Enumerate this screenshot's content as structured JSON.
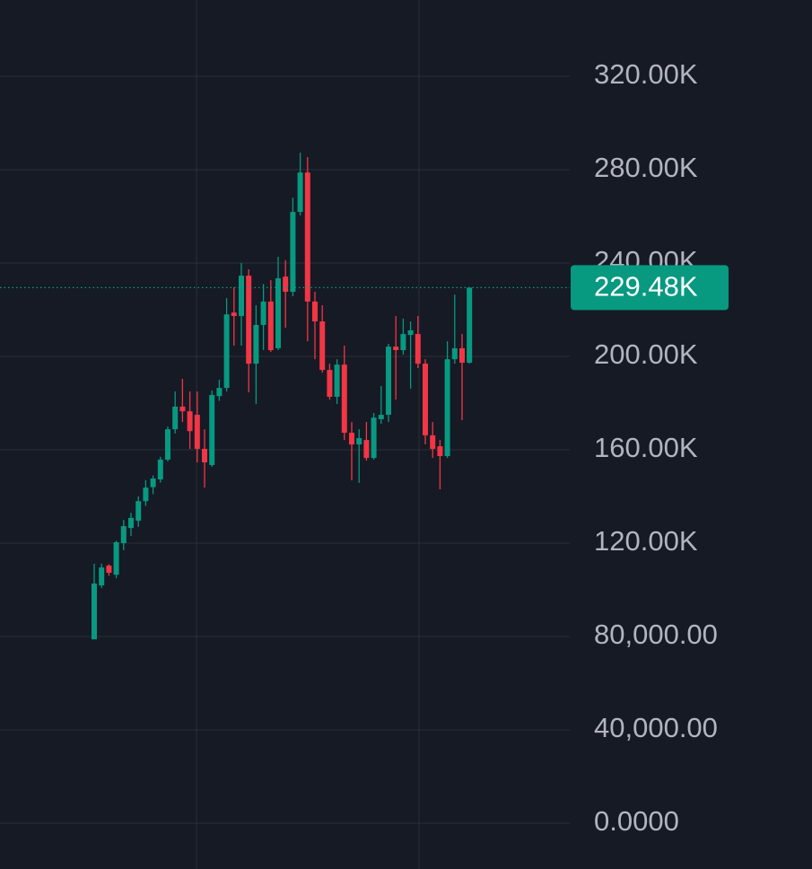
{
  "chart_data": {
    "type": "candlestick",
    "open": [
      78800,
      101900,
      110400,
      106500,
      120000,
      126500,
      129600,
      138000,
      144000,
      147300,
      155800,
      168800,
      178500,
      176500,
      175000,
      160400,
      153500,
      183000,
      186500,
      218800,
      217300,
      234600,
      196900,
      213500,
      223500,
      203500,
      234200,
      227700,
      261900,
      278800,
      223500,
      215000,
      194200,
      182700,
      196500,
      167300,
      162300,
      164200,
      156500,
      173100,
      175000,
      204200,
      202700,
      209200,
      209600,
      196900,
      166200,
      161500,
      157300,
      198800,
      203500,
      197300
    ],
    "high": [
      111200,
      111200,
      111000,
      121000,
      130000,
      133000,
      140000,
      147000,
      149000,
      157000,
      170000,
      185000,
      190400,
      185000,
      185000,
      168800,
      185400,
      190000,
      225000,
      229600,
      240000,
      237300,
      221900,
      231000,
      232700,
      242700,
      241200,
      268000,
      287300,
      285400,
      227700,
      221900,
      196900,
      198800,
      204600,
      171900,
      168800,
      171900,
      175800,
      187300,
      205400,
      217300,
      216200,
      215000,
      217300,
      198800,
      171900,
      164200,
      206500,
      226500,
      209600,
      229480
    ],
    "low": [
      78800,
      100800,
      106000,
      105000,
      117000,
      123000,
      127000,
      136000,
      141000,
      146000,
      155000,
      167000,
      171900,
      160400,
      154600,
      143800,
      152700,
      181000,
      185000,
      204600,
      204600,
      184600,
      179600,
      202700,
      201900,
      202700,
      212300,
      225800,
      260400,
      206500,
      198800,
      193100,
      181500,
      179600,
      164200,
      146900,
      145800,
      155400,
      155800,
      171200,
      171900,
      181500,
      200800,
      186200,
      195000,
      162300,
      156500,
      143100,
      156500,
      196900,
      172700,
      196900
    ],
    "close": [
      102700,
      109600,
      107300,
      120400,
      127300,
      130800,
      138000,
      143800,
      147700,
      155800,
      168800,
      178500,
      176500,
      168000,
      160400,
      154600,
      183500,
      186500,
      218000,
      217300,
      234600,
      196900,
      213500,
      223500,
      202700,
      233500,
      227700,
      261900,
      278800,
      223500,
      215000,
      194200,
      182700,
      196500,
      167300,
      162300,
      165000,
      156500,
      173800,
      175000,
      204200,
      202700,
      209600,
      211200,
      196900,
      166200,
      160400,
      157300,
      198800,
      203500,
      197300,
      229480
    ],
    "up_color": "#089981",
    "down_color": "#f23645",
    "ylim": [
      -19600,
      352700
    ],
    "yticks": [
      {
        "value": 0,
        "label": "0.0000"
      },
      {
        "value": 40000,
        "label": "40,000.00"
      },
      {
        "value": 80000,
        "label": "80,000.00"
      },
      {
        "value": 120000,
        "label": "120.00K"
      },
      {
        "value": 160000,
        "label": "160.00K"
      },
      {
        "value": 200000,
        "label": "200.00K"
      },
      {
        "value": 240000,
        "label": "240.00K"
      },
      {
        "value": 280000,
        "label": "280.00K"
      },
      {
        "value": 320000,
        "label": "320.00K"
      }
    ],
    "grid": true,
    "last_price": {
      "value": 229480,
      "label": "229.48K"
    }
  }
}
